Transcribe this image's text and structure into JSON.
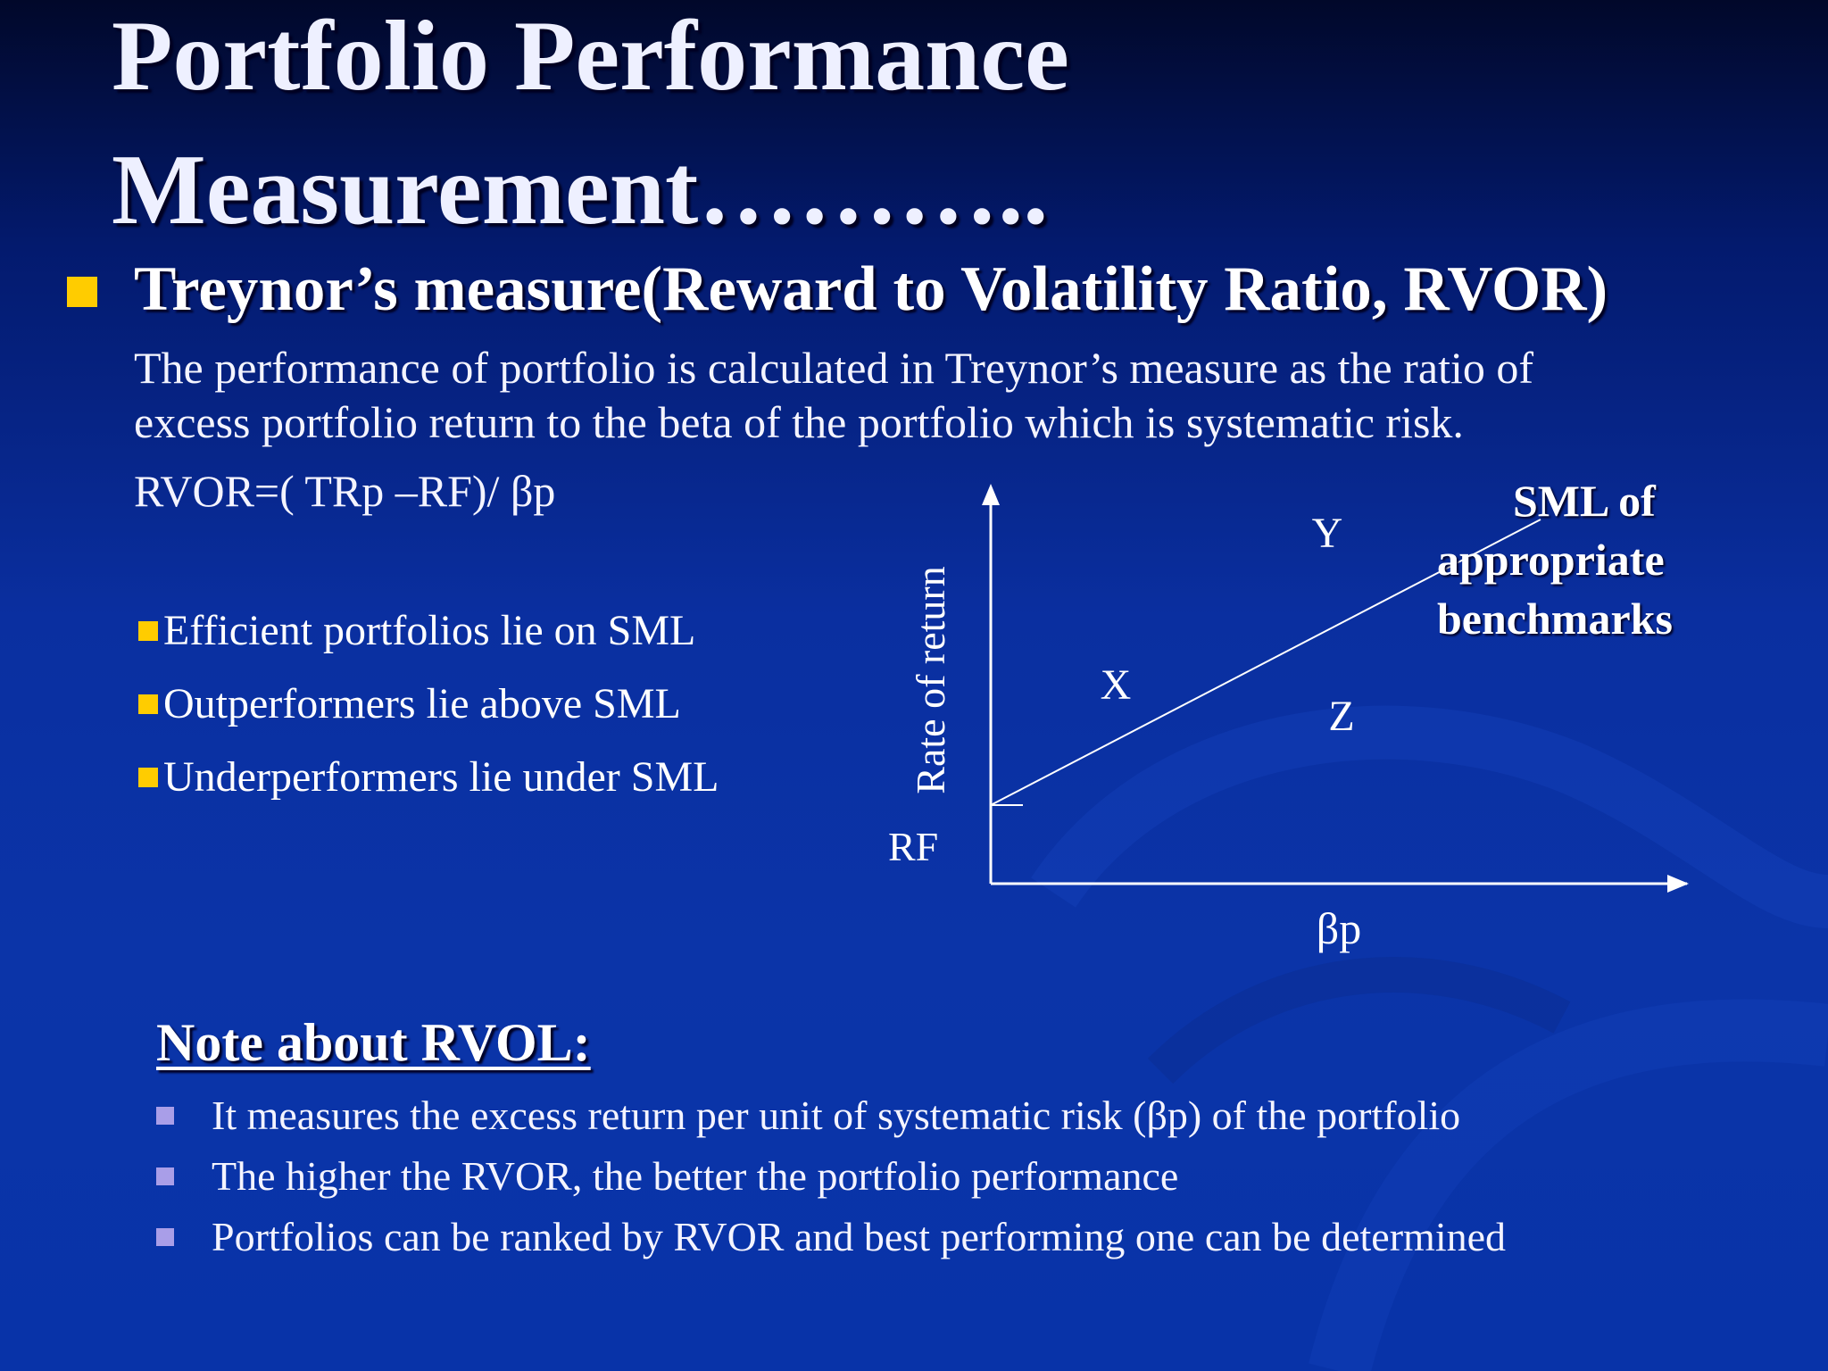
{
  "slide": {
    "title_line1": "Portfolio Performance",
    "title_line2": "Measurement………..",
    "subheading": "Treynor’s measure(Reward to Volatility Ratio, RVOR)",
    "description_line1": "The performance of portfolio is calculated in Treynor’s measure as the ratio of",
    "description_line2": "excess portfolio return to the beta of the portfolio which is systematic risk.",
    "formula": "RVOR=( TRp –RF)/ βp",
    "points": [
      "Efficient portfolios lie on SML",
      "Outperformers lie above SML",
      "Underperformers lie under SML"
    ],
    "note_heading": "Note about RVOL:",
    "notes": [
      "It measures the excess return per unit of systematic risk (βp) of the portfolio",
      "The higher the RVOR, the better the portfolio performance",
      "Portfolios can be ranked by RVOR and best performing one can be determined"
    ]
  },
  "diagram": {
    "y_axis_label": "Rate of return",
    "x_axis_label": "βp",
    "rf_label": "RF",
    "point_x": "X",
    "point_y": "Y",
    "point_z": "Z",
    "sml_label_line1": "SML of",
    "sml_label_line2": "appropriate",
    "sml_label_line3": "benchmarks"
  },
  "colors": {
    "bullet_main": "#ffcc00",
    "bullet_note": "#a99ee8",
    "background_dark": "#01082a",
    "background_blue": "#0a2fa0"
  }
}
